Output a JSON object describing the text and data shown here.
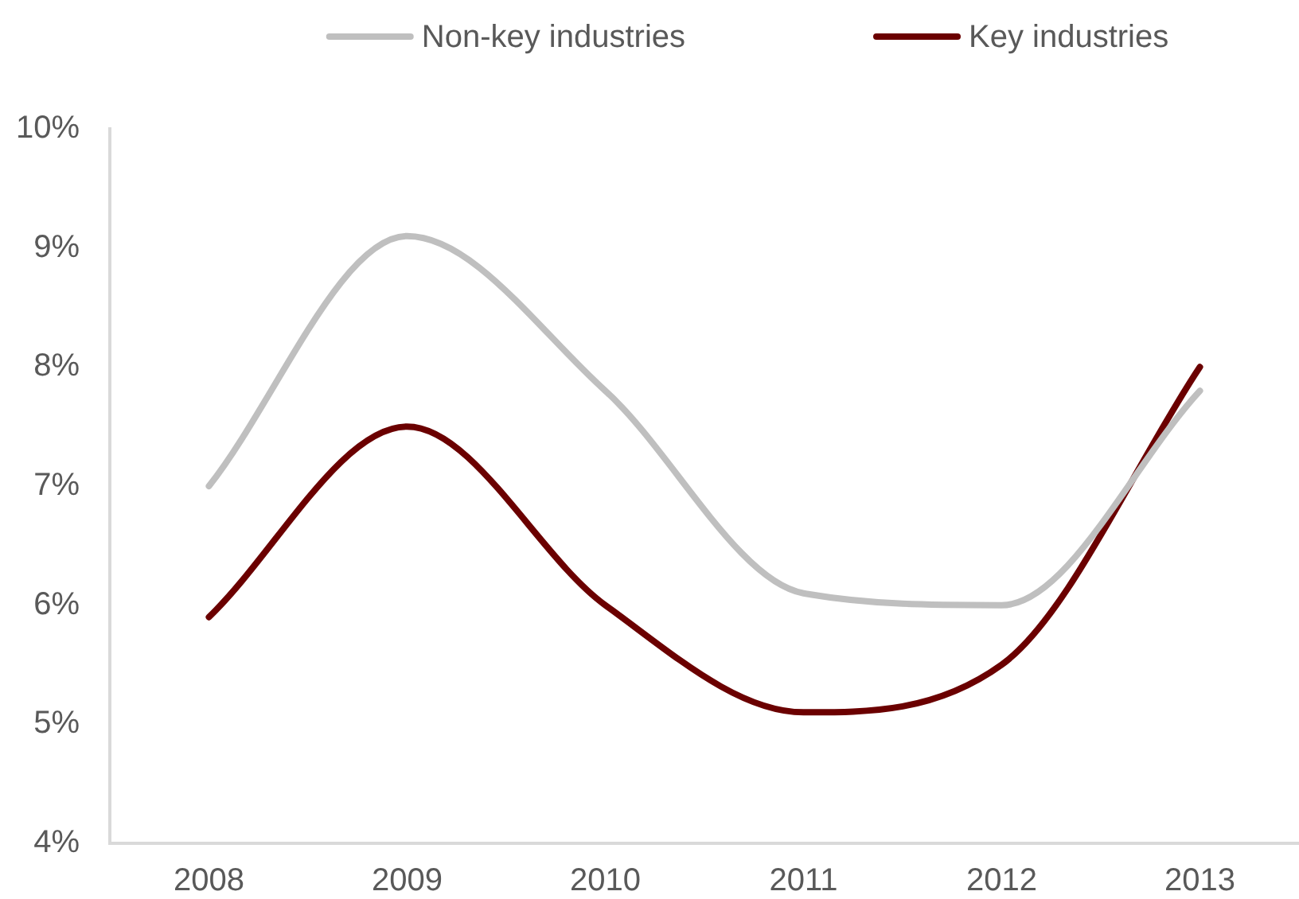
{
  "chart_data": {
    "type": "line",
    "categories": [
      "2008",
      "2009",
      "2010",
      "2011",
      "2012",
      "2013"
    ],
    "series": [
      {
        "name": "Non-key industries",
        "color": "#bfbfbf",
        "values": [
          7.0,
          9.1,
          7.8,
          6.1,
          6.0,
          7.8
        ]
      },
      {
        "name": "Key industries",
        "color": "#6b0000",
        "values": [
          5.9,
          7.5,
          6.0,
          5.1,
          5.5,
          8.0
        ]
      }
    ],
    "ylim": [
      4,
      10
    ],
    "yticks": [
      {
        "value": 4,
        "label": "4%"
      },
      {
        "value": 5,
        "label": "5%"
      },
      {
        "value": 6,
        "label": "6%"
      },
      {
        "value": 7,
        "label": "7%"
      },
      {
        "value": 8,
        "label": "8%"
      },
      {
        "value": 9,
        "label": "9%"
      },
      {
        "value": 10,
        "label": "10%"
      }
    ],
    "grid": false,
    "legend": "top",
    "marker": "none",
    "line_style": "solid"
  }
}
